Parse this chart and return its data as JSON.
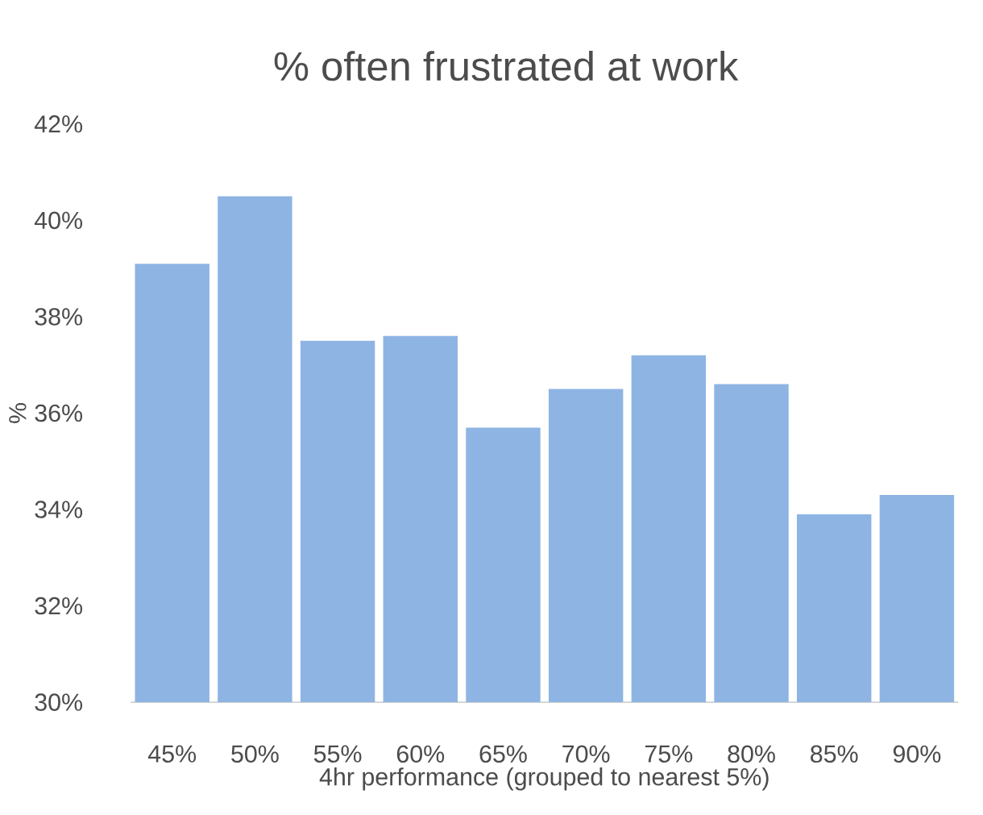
{
  "chart_data": {
    "type": "bar",
    "title": "% often frustrated at work",
    "xlabel": "4hr performance (grouped to nearest 5%)",
    "ylabel": "%",
    "categories": [
      "45%",
      "50%",
      "55%",
      "60%",
      "65%",
      "70%",
      "75%",
      "80%",
      "85%",
      "90%"
    ],
    "values": [
      39.1,
      40.5,
      37.5,
      37.6,
      35.7,
      36.5,
      37.2,
      36.6,
      33.9,
      34.3
    ],
    "color": "#8eb4e3",
    "ylim": [
      30,
      42
    ],
    "yticks": [
      {
        "value": 30,
        "label": "30%"
      },
      {
        "value": 32,
        "label": "32%"
      },
      {
        "value": 34,
        "label": "34%"
      },
      {
        "value": 36,
        "label": "36%"
      },
      {
        "value": 38,
        "label": "38%"
      },
      {
        "value": 40,
        "label": "40%"
      },
      {
        "value": 42,
        "label": "42%"
      }
    ]
  }
}
